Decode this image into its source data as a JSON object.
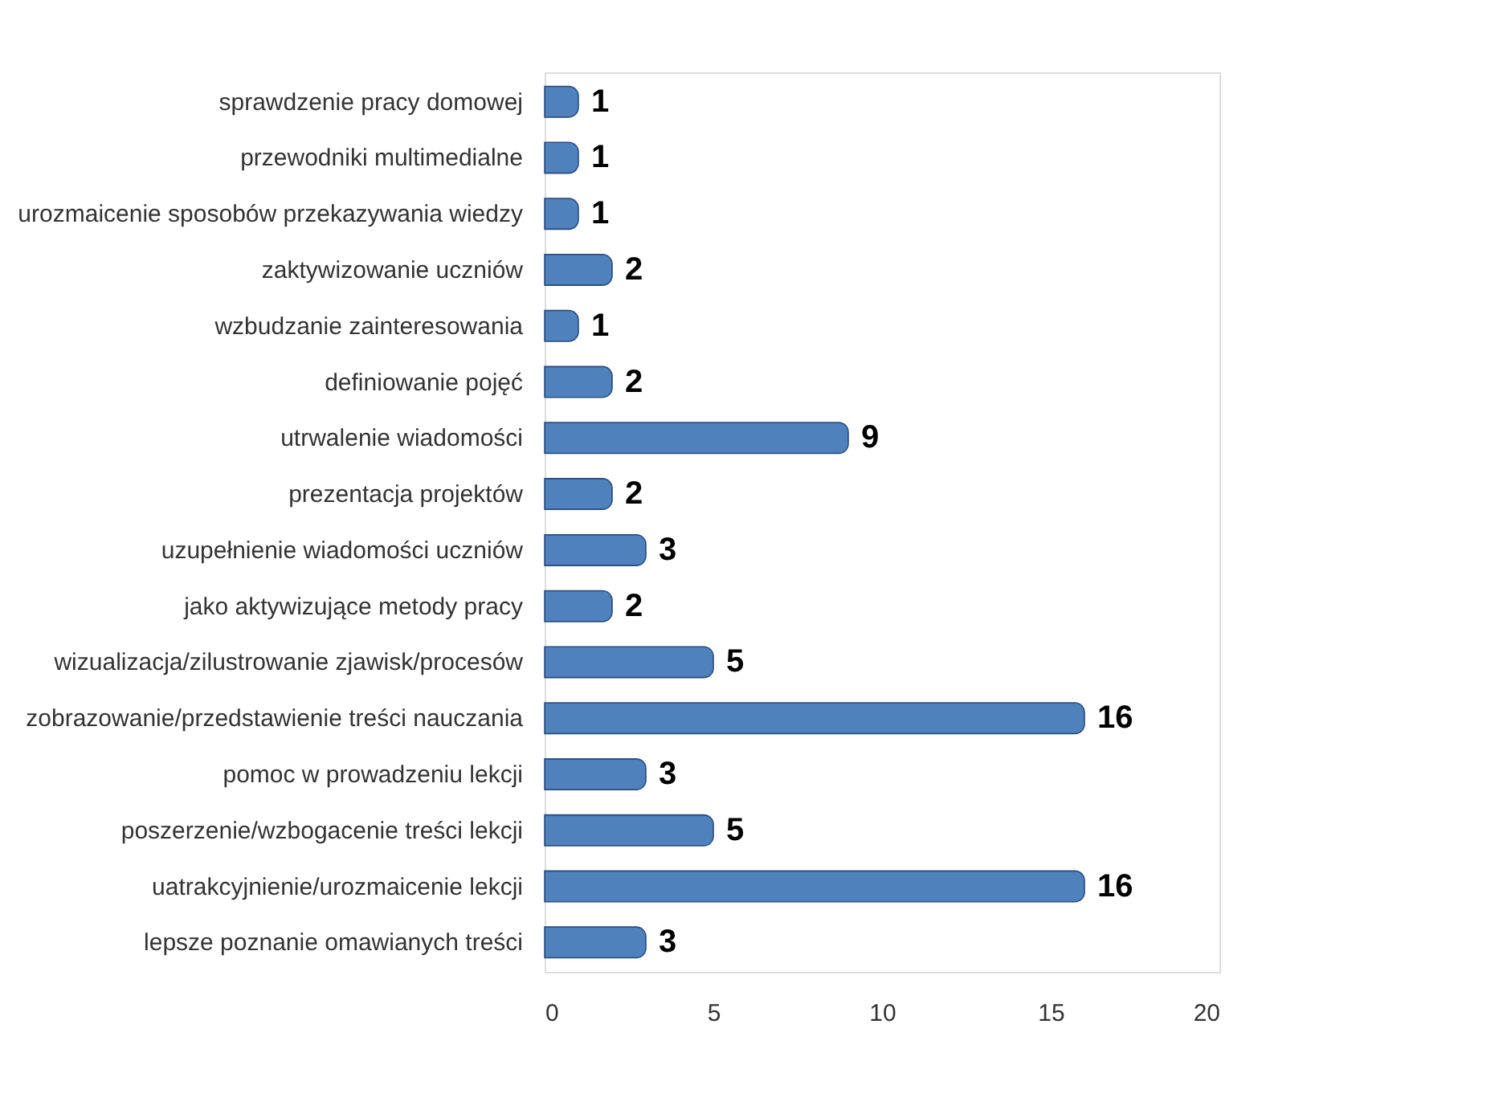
{
  "chart_data": {
    "type": "bar",
    "orientation": "horizontal",
    "categories": [
      "sprawdzenie pracy domowej",
      "przewodniki multimedialne",
      "urozmaicenie sposobów przekazywania wiedzy",
      "zaktywizowanie uczniów",
      "wzbudzanie zainteresowania",
      "definiowanie pojęć",
      "utrwalenie wiadomości",
      "prezentacja projektów",
      "uzupełnienie wiadomości uczniów",
      "jako aktywizujące metody pracy",
      "wizualizacja/zilustrowanie zjawisk/procesów",
      "zobrazowanie/przedstawienie treści nauczania",
      "pomoc w prowadzeniu lekcji",
      "poszerzenie/wzbogacenie treści lekcji",
      "uatrakcyjnienie/urozmaicenie lekcji",
      "lepsze poznanie omawianych treści"
    ],
    "values": [
      1,
      1,
      1,
      2,
      1,
      2,
      9,
      2,
      3,
      2,
      5,
      16,
      3,
      5,
      16,
      3
    ],
    "color": "#4f81bd",
    "xlim": [
      0,
      20
    ],
    "xticks": [
      0,
      5,
      10,
      15,
      20
    ],
    "data_labels": true
  }
}
